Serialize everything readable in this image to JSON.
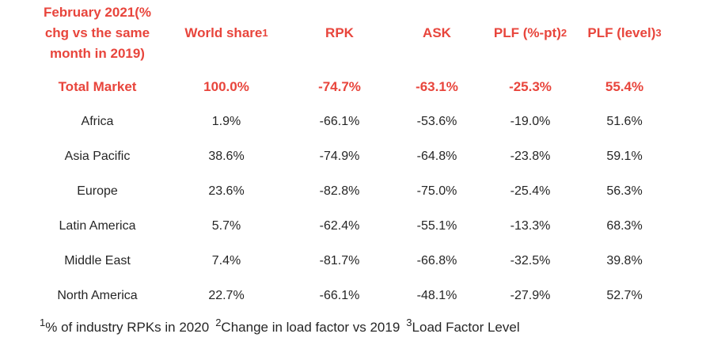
{
  "table": {
    "headers": [
      {
        "label": "February 2021(% chg vs the same month in 2019)",
        "line1": "February 2021(%",
        "line2": "chg vs the same",
        "line3": "month in 2019)"
      },
      {
        "label": "World share",
        "sup": "1"
      },
      {
        "label": "RPK",
        "sup": ""
      },
      {
        "label": "ASK",
        "sup": ""
      },
      {
        "label": "PLF (%-pt)",
        "sup": "2"
      },
      {
        "label": "PLF (level)",
        "sup": "3"
      }
    ],
    "total": [
      "Total Market",
      "100.0%",
      "-74.7%",
      "-63.1%",
      "-25.3%",
      "55.4%"
    ],
    "rows": [
      [
        "Africa",
        "1.9%",
        "-66.1%",
        "-53.6%",
        "-19.0%",
        "51.6%"
      ],
      [
        "Asia Pacific",
        "38.6%",
        "-74.9%",
        "-64.8%",
        "-23.8%",
        "59.1%"
      ],
      [
        "Europe",
        "23.6%",
        "-82.8%",
        "-75.0%",
        "-25.4%",
        "56.3%"
      ],
      [
        "Latin America",
        "5.7%",
        "-62.4%",
        "-55.1%",
        "-13.3%",
        "68.3%"
      ],
      [
        "Middle East",
        "7.4%",
        "-81.7%",
        "-66.8%",
        "-32.5%",
        "39.8%"
      ],
      [
        "North America",
        "22.7%",
        "-66.1%",
        "-48.1%",
        "-27.9%",
        "52.7%"
      ]
    ]
  },
  "footnotes": {
    "n1_sup": "1",
    "n1_text": "% of industry RPKs in 2020",
    "n2_sup": "2",
    "n2_text": "Change in load factor vs 2019",
    "n3_sup": "3",
    "n3_text": "Load Factor Level"
  },
  "colors": {
    "accent": "#e8453c",
    "text": "#262626",
    "background": "#ffffff"
  }
}
